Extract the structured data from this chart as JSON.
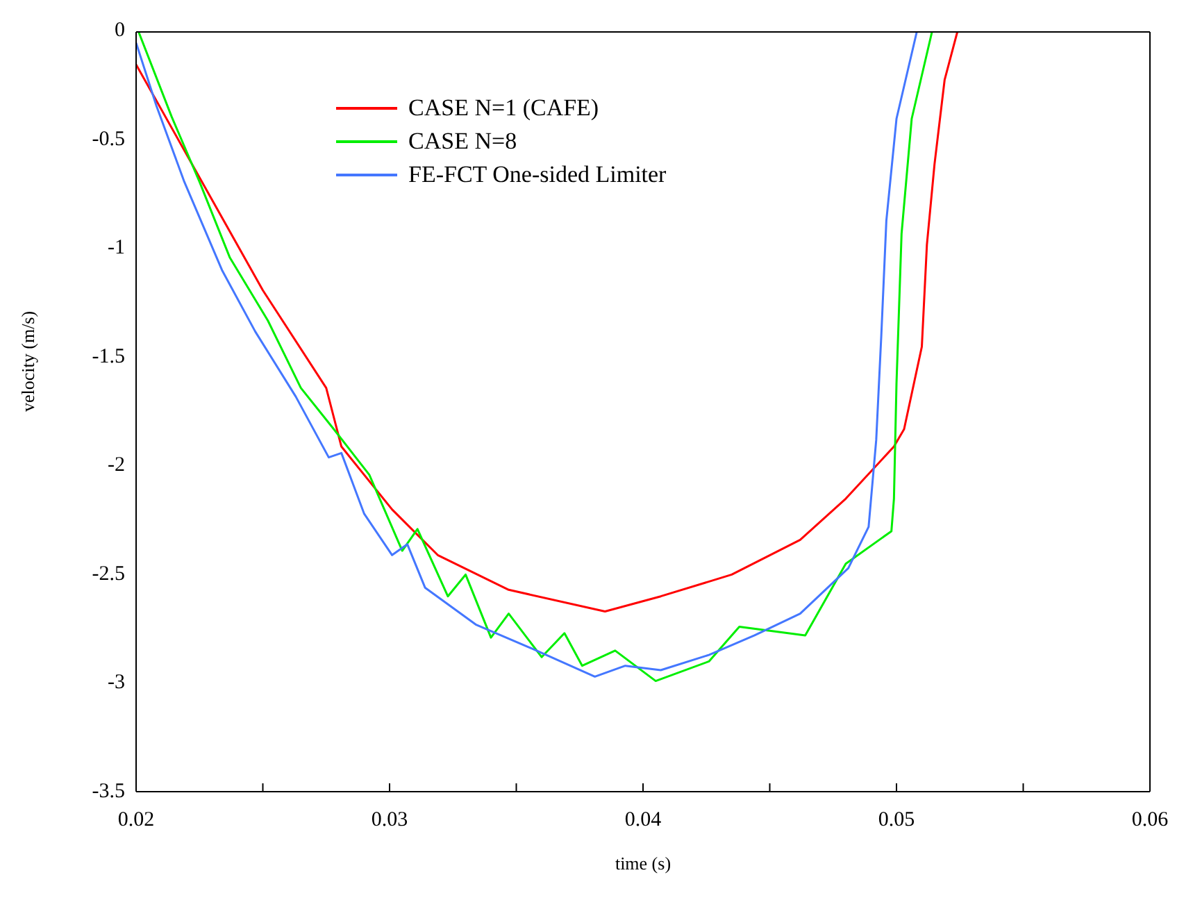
{
  "chart_data": {
    "type": "line",
    "xlabel": "time (s)",
    "ylabel": "velocity (m/s)",
    "xlim": [
      0.02,
      0.06
    ],
    "ylim": [
      -3.5,
      0
    ],
    "xticks": [
      0.02,
      {
        "value": 0.025,
        "label": null
      },
      0.03,
      {
        "value": 0.035,
        "label": null
      },
      0.04,
      {
        "value": 0.045,
        "label": null
      },
      0.05,
      {
        "value": 0.055,
        "label": null
      },
      0.06
    ],
    "yticks": [
      -3.5,
      -3,
      -2.5,
      -2,
      -1.5,
      -1,
      -0.5,
      0
    ],
    "grid": false,
    "legend": "top",
    "marker": "none",
    "line_style": "solid",
    "series": [
      {
        "name": "CASE N=1 (CAFE)",
        "color": "#ff0000",
        "x": [
          0.02,
          0.0225,
          0.025,
          0.0275,
          0.0281,
          0.0301,
          0.0319,
          0.0347,
          0.0385,
          0.0407,
          0.0435,
          0.0462,
          0.048,
          0.0499,
          0.0503,
          0.051,
          0.0512,
          0.0515,
          0.0519,
          0.0524
        ],
        "values": [
          -0.15,
          -0.67,
          -1.19,
          -1.64,
          -1.91,
          -2.2,
          -2.41,
          -2.57,
          -2.67,
          -2.6,
          -2.5,
          -2.34,
          -2.15,
          -1.91,
          -1.83,
          -1.45,
          -0.98,
          -0.61,
          -0.22,
          0
        ]
      },
      {
        "name": "CASE N=8",
        "color": "#00ee00",
        "x": [
          0.0201,
          0.0214,
          0.0225,
          0.0237,
          0.0252,
          0.0265,
          0.0278,
          0.0292,
          0.0305,
          0.0311,
          0.0323,
          0.033,
          0.034,
          0.0347,
          0.036,
          0.0369,
          0.0376,
          0.0389,
          0.0405,
          0.0426,
          0.0438,
          0.0464,
          0.048,
          0.0498,
          0.0499,
          0.05,
          0.0502,
          0.0506,
          0.0514
        ],
        "values": [
          0,
          -0.39,
          -0.69,
          -1.04,
          -1.33,
          -1.64,
          -1.83,
          -2.04,
          -2.39,
          -2.29,
          -2.6,
          -2.5,
          -2.79,
          -2.68,
          -2.88,
          -2.77,
          -2.92,
          -2.85,
          -2.99,
          -2.9,
          -2.74,
          -2.78,
          -2.45,
          -2.3,
          -2.15,
          -1.62,
          -0.93,
          -0.4,
          0
        ]
      },
      {
        "name": "FE-FCT One-sided Limiter",
        "color": "#4477ff",
        "x": [
          0.02,
          0.0208,
          0.0219,
          0.0234,
          0.0247,
          0.0263,
          0.0276,
          0.0281,
          0.029,
          0.0301,
          0.0307,
          0.0314,
          0.0334,
          0.0356,
          0.0381,
          0.0393,
          0.0407,
          0.0426,
          0.0444,
          0.0462,
          0.0481,
          0.0489,
          0.0492,
          0.0494,
          0.0496,
          0.05,
          0.0508
        ],
        "values": [
          -0.05,
          -0.34,
          -0.69,
          -1.1,
          -1.38,
          -1.68,
          -1.96,
          -1.94,
          -2.22,
          -2.41,
          -2.36,
          -2.56,
          -2.73,
          -2.84,
          -2.97,
          -2.92,
          -2.94,
          -2.87,
          -2.78,
          -2.68,
          -2.47,
          -2.28,
          -1.88,
          -1.4,
          -0.87,
          -0.4,
          0
        ]
      }
    ]
  }
}
